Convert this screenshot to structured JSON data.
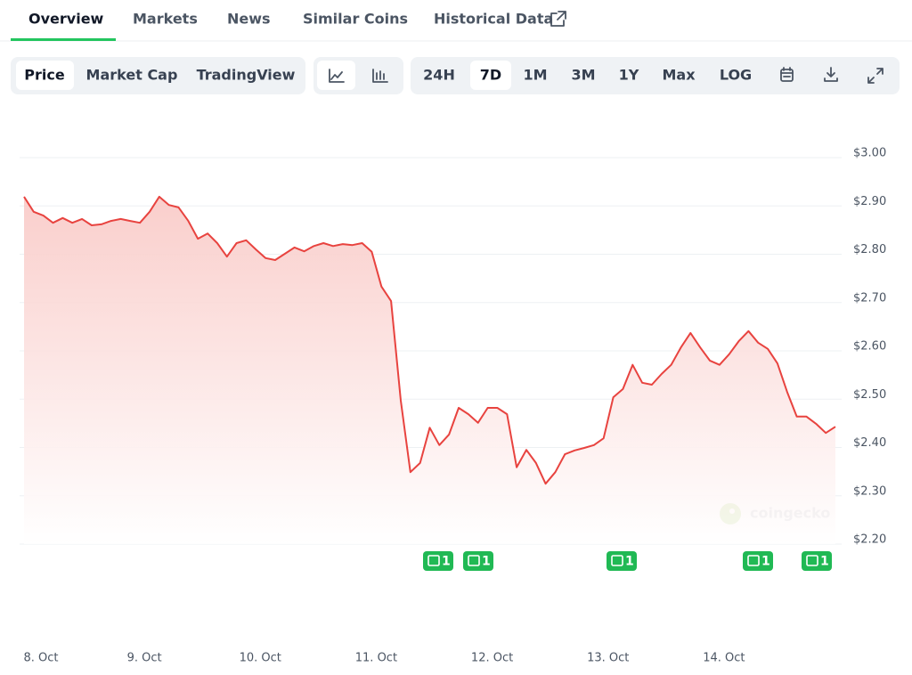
{
  "tabs": [
    "Overview",
    "Markets",
    "News",
    "Similar Coins",
    "Historical Data"
  ],
  "chart_modes": [
    "Price",
    "Market Cap",
    "TradingView"
  ],
  "ranges": [
    "24H",
    "7D",
    "1M",
    "3M",
    "1Y",
    "Max",
    "LOG"
  ],
  "news": [
    1,
    1,
    1,
    1,
    1
  ],
  "watermark": "coingecko",
  "chart_data": {
    "type": "line",
    "color": "#e8433f",
    "grid": true,
    "categories": [
      "8. Oct",
      null,
      null,
      null,
      null,
      null,
      null,
      null,
      null,
      null,
      null,
      null,
      "9. Oct",
      null,
      null,
      null,
      null,
      null,
      null,
      null,
      null,
      null,
      null,
      null,
      "10. Oct",
      null,
      null,
      null,
      null,
      null,
      null,
      null,
      null,
      null,
      null,
      null,
      "11. Oct",
      null,
      null,
      null,
      null,
      null,
      null,
      null,
      null,
      null,
      null,
      null,
      "12. Oct",
      null,
      null,
      null,
      null,
      null,
      null,
      null,
      null,
      null,
      null,
      null,
      "13. Oct",
      null,
      null,
      null,
      null,
      null,
      null,
      null,
      null,
      null,
      null,
      null,
      "14. Oct",
      null,
      null,
      null,
      null,
      null,
      null,
      null,
      null,
      null,
      null,
      null,
      null
    ],
    "values": [
      2.919,
      2.888,
      2.88,
      2.865,
      2.875,
      2.865,
      2.873,
      2.86,
      2.862,
      2.869,
      2.873,
      2.869,
      2.865,
      2.888,
      2.919,
      2.902,
      2.897,
      2.869,
      2.832,
      2.843,
      2.823,
      2.795,
      2.823,
      2.829,
      2.81,
      2.792,
      2.788,
      2.801,
      2.814,
      2.806,
      2.817,
      2.823,
      2.817,
      2.821,
      2.819,
      2.823,
      2.805,
      2.733,
      2.703,
      2.497,
      2.349,
      2.368,
      2.441,
      2.405,
      2.427,
      2.482,
      2.469,
      2.451,
      2.482,
      2.482,
      2.469,
      2.359,
      2.395,
      2.368,
      2.325,
      2.349,
      2.386,
      2.394,
      2.399,
      2.405,
      2.419,
      2.504,
      2.521,
      2.571,
      2.534,
      2.53,
      2.552,
      2.571,
      2.607,
      2.637,
      2.607,
      2.58,
      2.571,
      2.593,
      2.62,
      2.641,
      2.617,
      2.604,
      2.574,
      2.515,
      2.464,
      2.464,
      2.449,
      2.43,
      2.443
    ],
    "ylim": [
      2.2,
      3.0
    ],
    "yticks": [
      {
        "value": 2.2,
        "label": "$2.20"
      },
      {
        "value": 2.3,
        "label": "$2.30"
      },
      {
        "value": 2.4,
        "label": "$2.40"
      },
      {
        "value": 2.5,
        "label": "$2.50"
      },
      {
        "value": 2.6,
        "label": "$2.60"
      },
      {
        "value": 2.7,
        "label": "$2.70"
      },
      {
        "value": 2.8,
        "label": "$2.80"
      },
      {
        "value": 2.9,
        "label": "$2.90"
      },
      {
        "value": 3.0,
        "label": "$3.00"
      }
    ]
  }
}
